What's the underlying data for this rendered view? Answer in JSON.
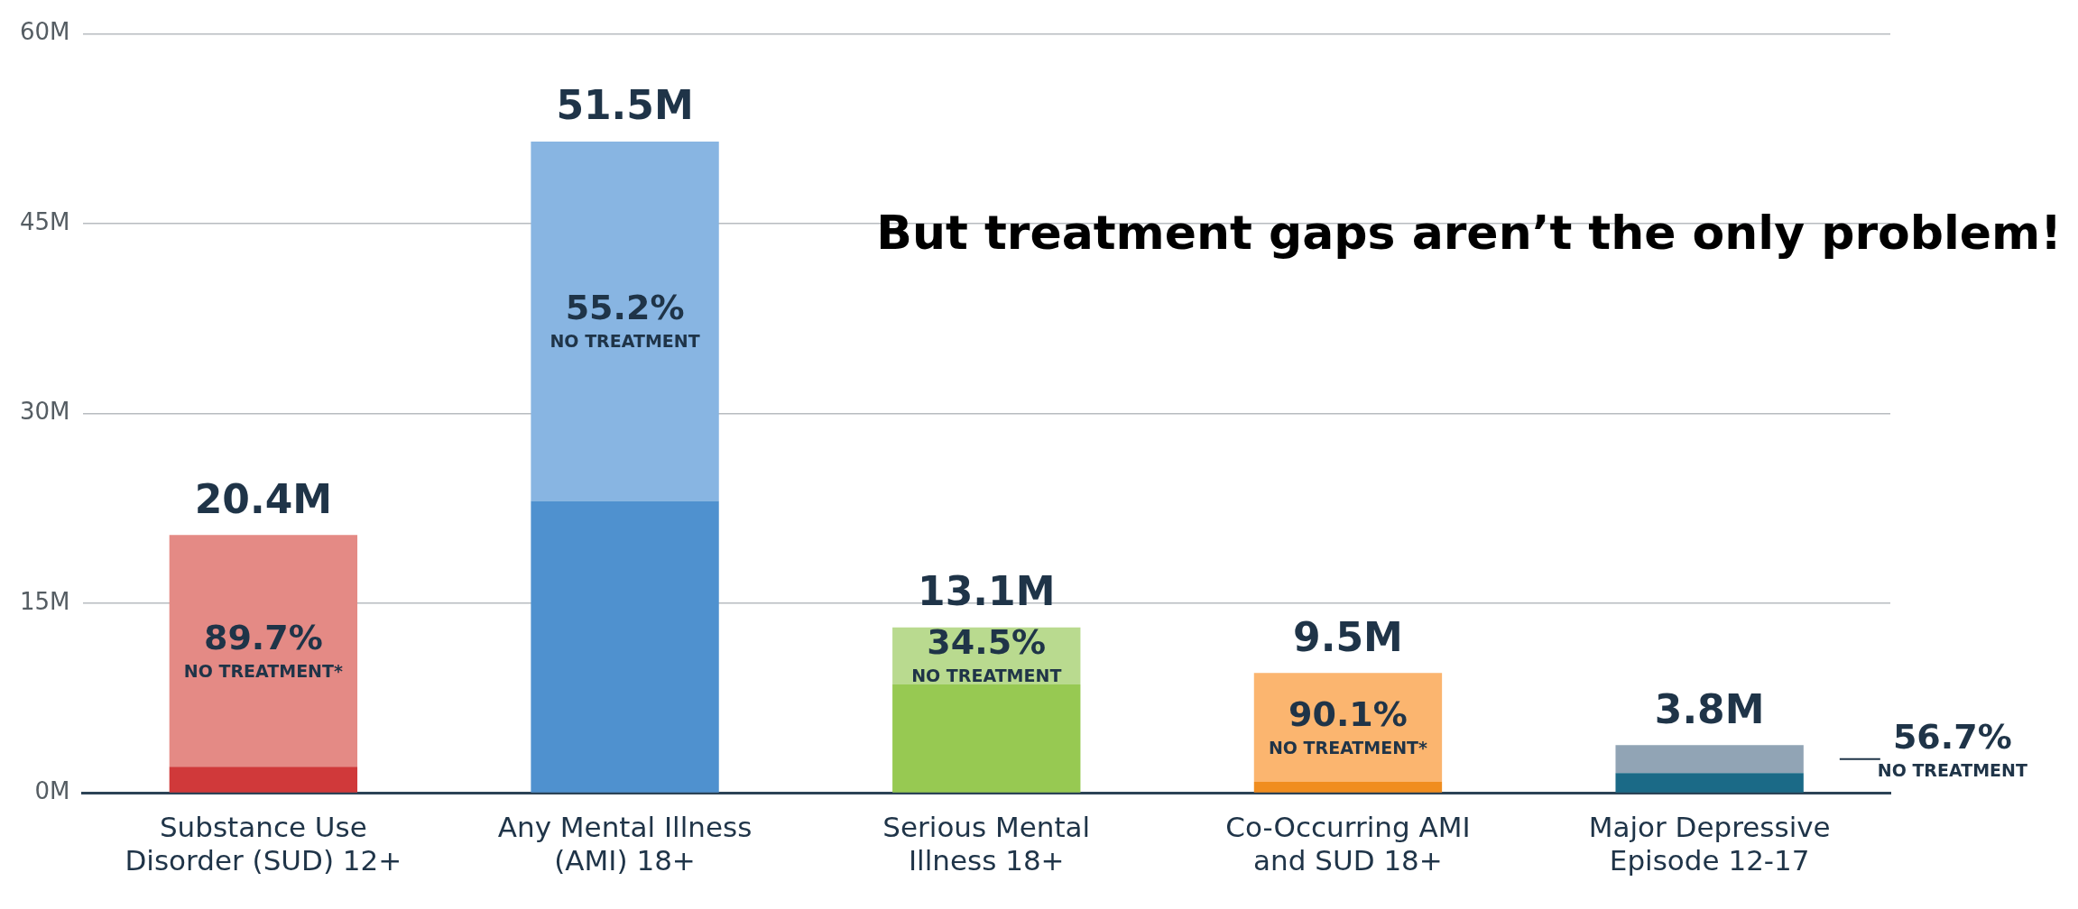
{
  "chart_data": {
    "type": "bar",
    "stacked": true,
    "categories": [
      "Substance Use\nDisorder (SUD) 12+",
      "Any Mental Illness\n(AMI) 18+",
      "Serious Mental\nIllness 18+",
      "Co-Occurring AMI\nand SUD 18+",
      "Major Depressive\nEpisode 12-17"
    ],
    "series": [
      {
        "colors": [
          "#d0393a",
          "#4f91cf",
          "#97c952",
          "#f08d1f",
          "#1b6a87"
        ],
        "values": [
          2.1,
          23.1,
          8.6,
          0.9,
          1.6
        ]
      },
      {
        "colors": [
          "#e48a85",
          "#88b5e2",
          "#b9da8f",
          "#fbb56f",
          "#91a4b5"
        ],
        "values": [
          18.3,
          28.4,
          4.5,
          8.6,
          2.2
        ]
      }
    ],
    "totals": [
      "20.4M",
      "51.5M",
      "13.1M",
      "9.5M",
      "3.8M"
    ],
    "ylim": [
      0,
      60
    ],
    "yticks": [
      {
        "value": 0,
        "label": "0M"
      },
      {
        "value": 15,
        "label": "15M"
      },
      {
        "value": 30,
        "label": "30M"
      },
      {
        "value": 45,
        "label": "45M"
      },
      {
        "value": 60,
        "label": "60M"
      }
    ],
    "grid": "y",
    "legend": false,
    "annotations": [
      "But treatment gaps aren’t the only problem!",
      "89.7%\nNO TREATMENT*",
      "55.2%\nNO TREATMENT",
      "34.5%\nNO TREATMENT",
      "90.1%\nNO TREATMENT*",
      "56.7%\nNO TREATMENT"
    ]
  }
}
